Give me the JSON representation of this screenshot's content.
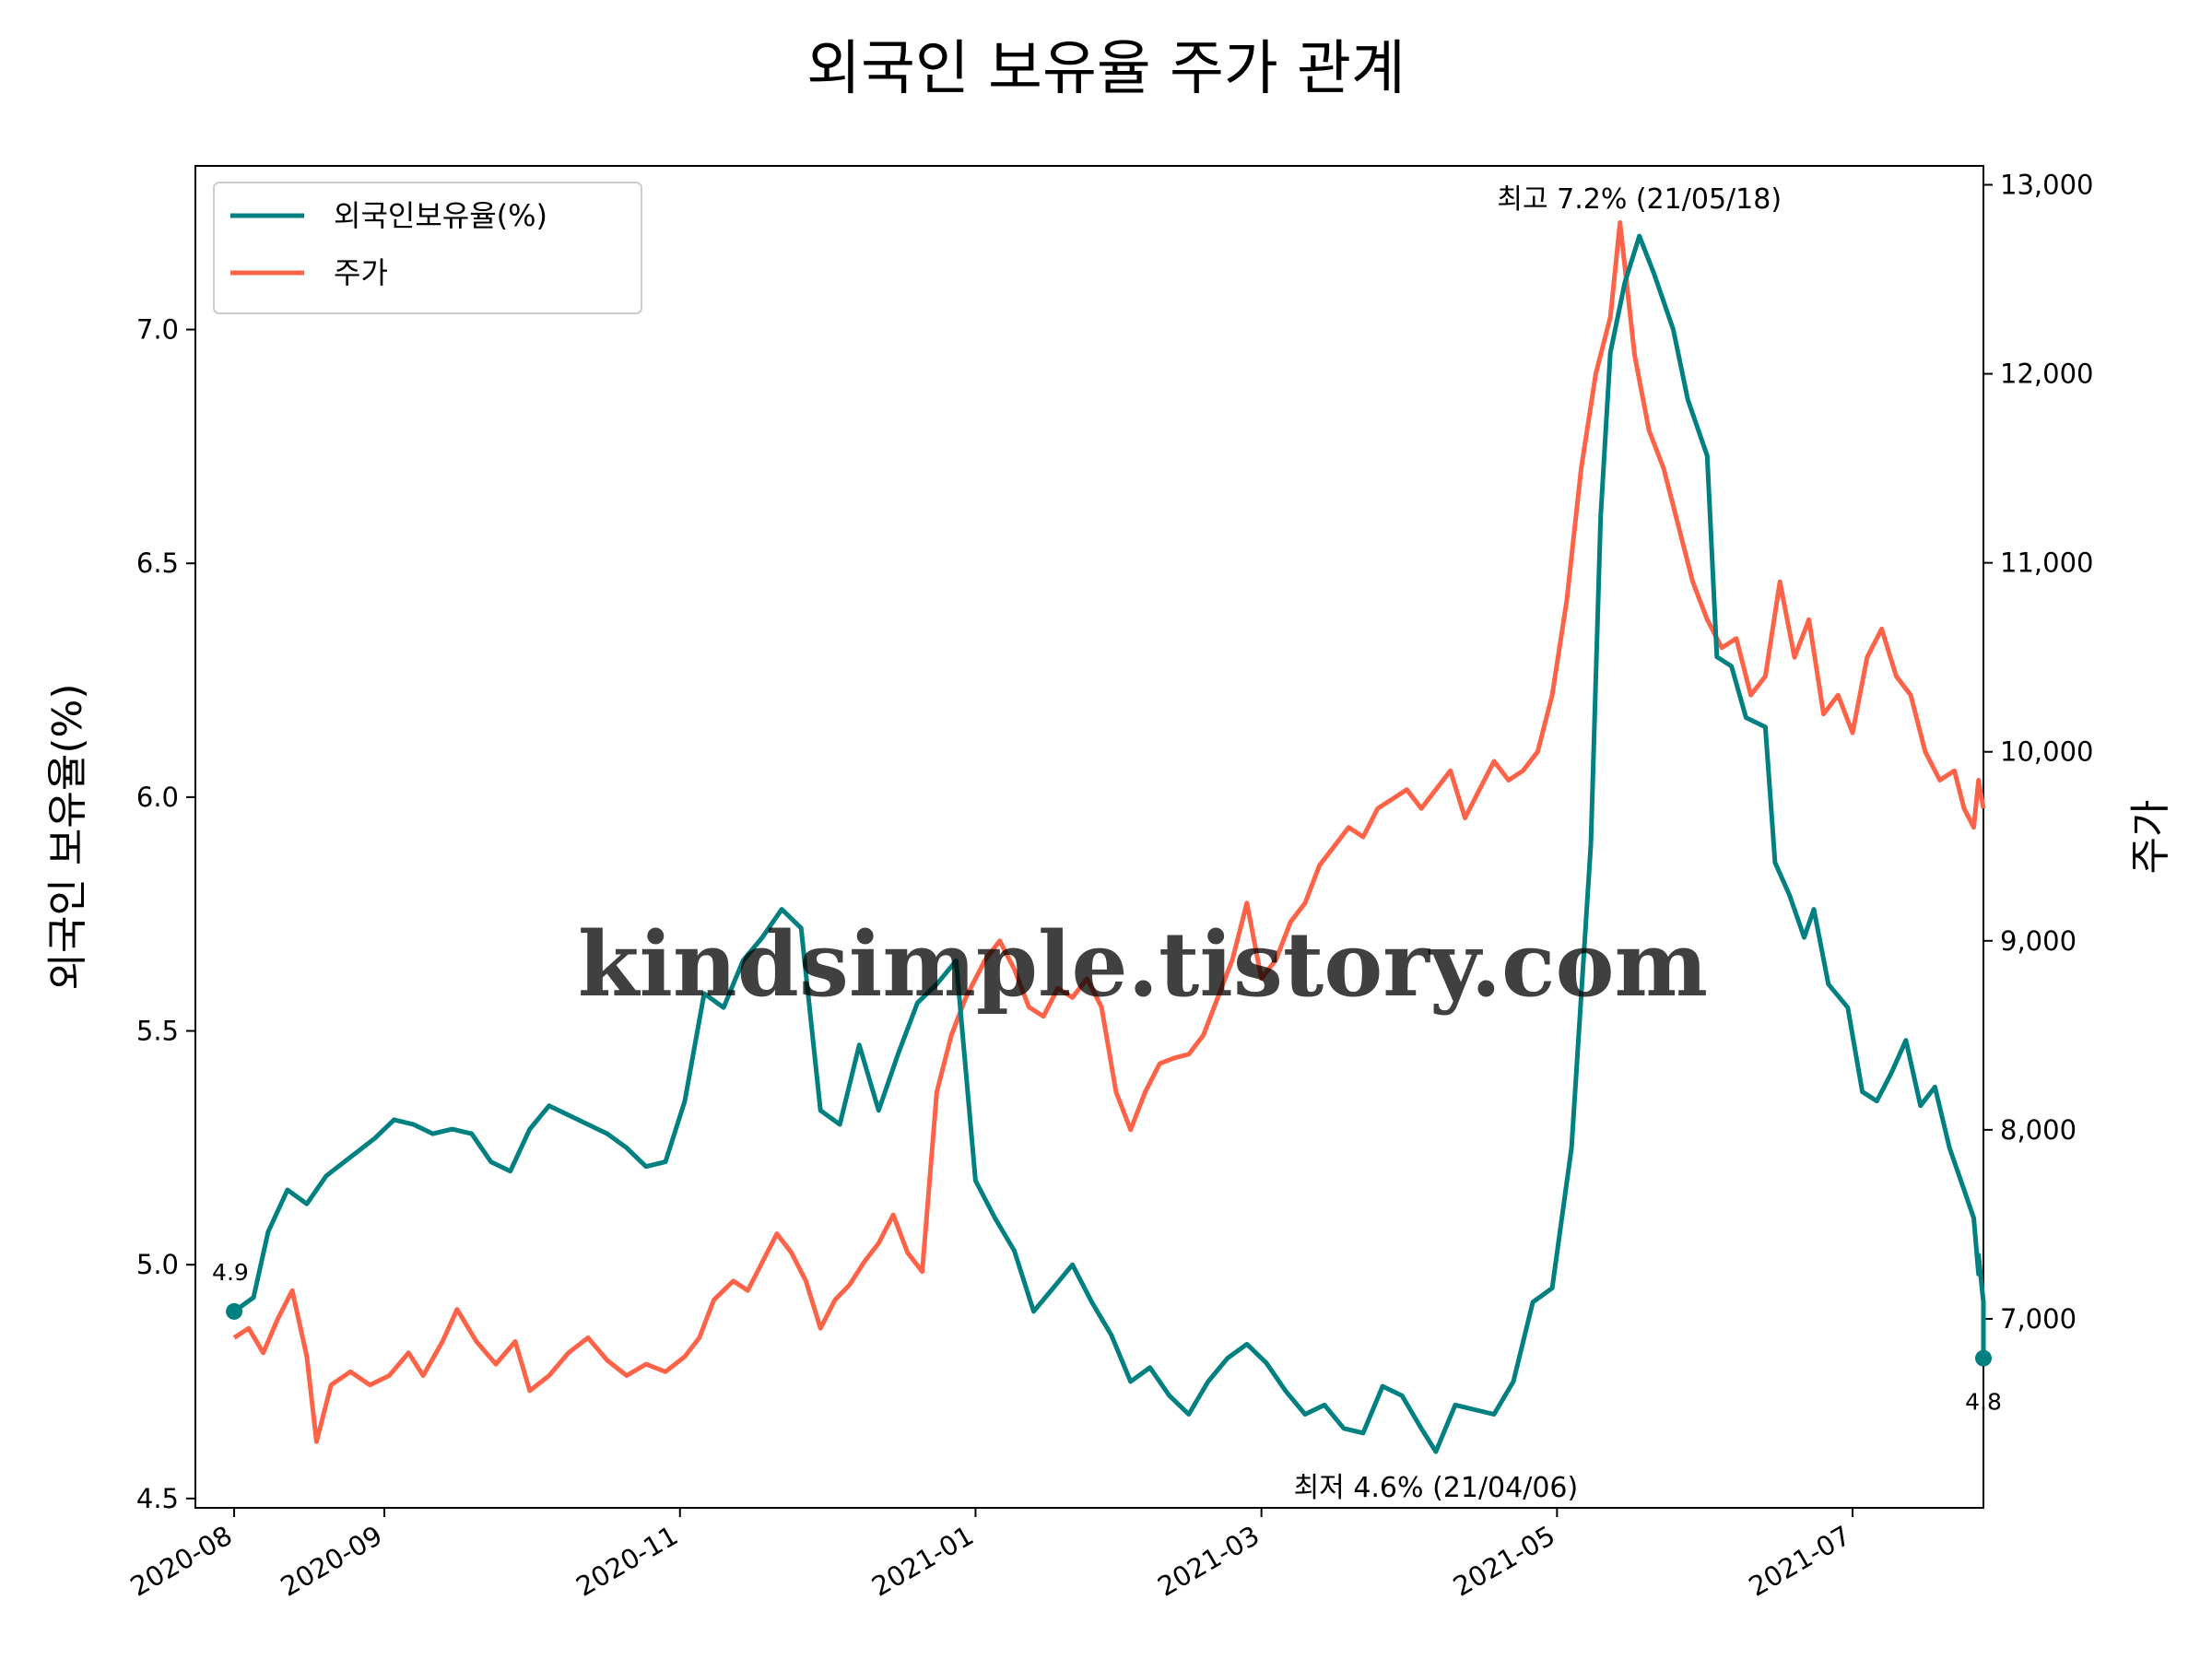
{
  "chart_data": {
    "type": "line",
    "title": "외국인 보유율 주가 관계",
    "ylabel_left": "외국인 보유율(%)",
    "ylabel_right": "주가",
    "ylim_left": [
      4.48,
      7.35
    ],
    "ylim_right": [
      6000,
      13100
    ],
    "x_range": [
      "2020-07-24",
      "2021-07-28"
    ],
    "x_ticks": [
      "2020-08",
      "2020-09",
      "2020-11",
      "2021-01",
      "2021-03",
      "2021-05",
      "2021-07"
    ],
    "x_tick_dates": [
      "2020-08-01",
      "2020-09-01",
      "2020-11-01",
      "2021-01-01",
      "2021-03-01",
      "2021-05-01",
      "2021-07-01"
    ],
    "y_ticks_left": [
      "4.5",
      "5.0",
      "5.5",
      "6.0",
      "6.5",
      "7.0"
    ],
    "y_ticks_right": [
      "7,000",
      "8,000",
      "9,000",
      "10,000",
      "11,000",
      "12,000",
      "13,000"
    ],
    "legend": {
      "position": "upper-left",
      "entries": [
        "외국인보유율(%)",
        "주가"
      ]
    },
    "colors": {
      "holding": "#008080",
      "price": "#FF6347",
      "max_label": "#FF0000",
      "min_label": "#0000FF"
    },
    "series": [
      {
        "name": "외국인보유율(%)",
        "axis": "left",
        "points": [
          [
            "2020-08-01",
            4.9
          ],
          [
            "2020-08-05",
            4.93
          ],
          [
            "2020-08-08",
            5.07
          ],
          [
            "2020-08-12",
            5.16
          ],
          [
            "2020-08-16",
            5.13
          ],
          [
            "2020-08-20",
            5.19
          ],
          [
            "2020-08-25",
            5.23
          ],
          [
            "2020-08-30",
            5.27
          ],
          [
            "2020-09-03",
            5.31
          ],
          [
            "2020-09-07",
            5.3
          ],
          [
            "2020-09-11",
            5.28
          ],
          [
            "2020-09-15",
            5.29
          ],
          [
            "2020-09-19",
            5.28
          ],
          [
            "2020-09-23",
            5.22
          ],
          [
            "2020-09-27",
            5.2
          ],
          [
            "2020-10-01",
            5.29
          ],
          [
            "2020-10-05",
            5.34
          ],
          [
            "2020-10-09",
            5.32
          ],
          [
            "2020-10-13",
            5.3
          ],
          [
            "2020-10-17",
            5.28
          ],
          [
            "2020-10-21",
            5.25
          ],
          [
            "2020-10-25",
            5.21
          ],
          [
            "2020-10-29",
            5.22
          ],
          [
            "2020-11-02",
            5.35
          ],
          [
            "2020-11-06",
            5.58
          ],
          [
            "2020-11-10",
            5.55
          ],
          [
            "2020-11-14",
            5.65
          ],
          [
            "2020-11-18",
            5.7
          ],
          [
            "2020-11-22",
            5.76
          ],
          [
            "2020-11-26",
            5.72
          ],
          [
            "2020-11-30",
            5.33
          ],
          [
            "2020-12-04",
            5.3
          ],
          [
            "2020-12-08",
            5.47
          ],
          [
            "2020-12-12",
            5.33
          ],
          [
            "2020-12-16",
            5.45
          ],
          [
            "2020-12-20",
            5.56
          ],
          [
            "2020-12-24",
            5.6
          ],
          [
            "2020-12-28",
            5.65
          ],
          [
            "2021-01-01",
            5.18
          ],
          [
            "2021-01-05",
            5.1
          ],
          [
            "2021-01-09",
            5.03
          ],
          [
            "2021-01-13",
            4.9
          ],
          [
            "2021-01-17",
            4.95
          ],
          [
            "2021-01-21",
            5.0
          ],
          [
            "2021-01-25",
            4.92
          ],
          [
            "2021-01-29",
            4.85
          ],
          [
            "2021-02-02",
            4.75
          ],
          [
            "2021-02-06",
            4.78
          ],
          [
            "2021-02-10",
            4.72
          ],
          [
            "2021-02-14",
            4.68
          ],
          [
            "2021-02-18",
            4.75
          ],
          [
            "2021-02-22",
            4.8
          ],
          [
            "2021-02-26",
            4.83
          ],
          [
            "2021-03-02",
            4.79
          ],
          [
            "2021-03-06",
            4.73
          ],
          [
            "2021-03-10",
            4.68
          ],
          [
            "2021-03-14",
            4.7
          ],
          [
            "2021-03-18",
            4.65
          ],
          [
            "2021-03-22",
            4.64
          ],
          [
            "2021-03-26",
            4.74
          ],
          [
            "2021-03-30",
            4.72
          ],
          [
            "2021-04-03",
            4.65
          ],
          [
            "2021-04-06",
            4.6
          ],
          [
            "2021-04-10",
            4.7
          ],
          [
            "2021-04-14",
            4.69
          ],
          [
            "2021-04-18",
            4.68
          ],
          [
            "2021-04-22",
            4.75
          ],
          [
            "2021-04-26",
            4.92
          ],
          [
            "2021-04-30",
            4.95
          ],
          [
            "2021-05-04",
            5.25
          ],
          [
            "2021-05-08",
            5.9
          ],
          [
            "2021-05-10",
            6.6
          ],
          [
            "2021-05-12",
            6.95
          ],
          [
            "2021-05-15",
            7.1
          ],
          [
            "2021-05-18",
            7.2
          ],
          [
            "2021-05-21",
            7.12
          ],
          [
            "2021-05-25",
            7.0
          ],
          [
            "2021-05-28",
            6.85
          ],
          [
            "2021-06-01",
            6.73
          ],
          [
            "2021-06-03",
            6.3
          ],
          [
            "2021-06-06",
            6.28
          ],
          [
            "2021-06-09",
            6.17
          ],
          [
            "2021-06-13",
            6.15
          ],
          [
            "2021-06-15",
            5.86
          ],
          [
            "2021-06-18",
            5.79
          ],
          [
            "2021-06-21",
            5.7
          ],
          [
            "2021-06-23",
            5.76
          ],
          [
            "2021-06-26",
            5.6
          ],
          [
            "2021-06-30",
            5.55
          ],
          [
            "2021-07-03",
            5.37
          ],
          [
            "2021-07-06",
            5.35
          ],
          [
            "2021-07-09",
            5.41
          ],
          [
            "2021-07-12",
            5.48
          ],
          [
            "2021-07-15",
            5.34
          ],
          [
            "2021-07-18",
            5.38
          ],
          [
            "2021-07-21",
            5.25
          ],
          [
            "2021-07-24",
            5.16
          ],
          [
            "2021-07-26",
            5.1
          ],
          [
            "2021-07-27",
            4.98
          ],
          [
            "2021-07-27",
            5.02
          ],
          [
            "2021-07-28",
            4.92
          ],
          [
            "2021-07-28",
            4.8
          ]
        ]
      },
      {
        "name": "주가",
        "axis": "right",
        "points": [
          [
            "2020-08-01",
            6900
          ],
          [
            "2020-08-04",
            6950
          ],
          [
            "2020-08-07",
            6820
          ],
          [
            "2020-08-10",
            7000
          ],
          [
            "2020-08-13",
            7150
          ],
          [
            "2020-08-16",
            6800
          ],
          [
            "2020-08-18",
            6350
          ],
          [
            "2020-08-21",
            6650
          ],
          [
            "2020-08-25",
            6720
          ],
          [
            "2020-08-29",
            6650
          ],
          [
            "2020-09-02",
            6700
          ],
          [
            "2020-09-06",
            6820
          ],
          [
            "2020-09-09",
            6700
          ],
          [
            "2020-09-13",
            6880
          ],
          [
            "2020-09-16",
            7050
          ],
          [
            "2020-09-20",
            6880
          ],
          [
            "2020-09-24",
            6760
          ],
          [
            "2020-09-28",
            6880
          ],
          [
            "2020-10-01",
            6620
          ],
          [
            "2020-10-05",
            6700
          ],
          [
            "2020-10-09",
            6820
          ],
          [
            "2020-10-13",
            6900
          ],
          [
            "2020-10-17",
            6780
          ],
          [
            "2020-10-21",
            6700
          ],
          [
            "2020-10-25",
            6760
          ],
          [
            "2020-10-29",
            6720
          ],
          [
            "2020-11-02",
            6800
          ],
          [
            "2020-11-05",
            6900
          ],
          [
            "2020-11-08",
            7100
          ],
          [
            "2020-11-12",
            7200
          ],
          [
            "2020-11-15",
            7150
          ],
          [
            "2020-11-18",
            7300
          ],
          [
            "2020-11-21",
            7450
          ],
          [
            "2020-11-24",
            7350
          ],
          [
            "2020-11-27",
            7200
          ],
          [
            "2020-11-30",
            6950
          ],
          [
            "2020-12-03",
            7100
          ],
          [
            "2020-12-06",
            7180
          ],
          [
            "2020-12-09",
            7300
          ],
          [
            "2020-12-12",
            7400
          ],
          [
            "2020-12-15",
            7550
          ],
          [
            "2020-12-18",
            7350
          ],
          [
            "2020-12-21",
            7250
          ],
          [
            "2020-12-24",
            8200
          ],
          [
            "2020-12-27",
            8500
          ],
          [
            "2020-12-30",
            8700
          ],
          [
            "2021-01-03",
            8900
          ],
          [
            "2021-01-06",
            9000
          ],
          [
            "2021-01-09",
            8850
          ],
          [
            "2021-01-12",
            8650
          ],
          [
            "2021-01-15",
            8600
          ],
          [
            "2021-01-18",
            8750
          ],
          [
            "2021-01-21",
            8700
          ],
          [
            "2021-01-24",
            8800
          ],
          [
            "2021-01-27",
            8650
          ],
          [
            "2021-01-30",
            8200
          ],
          [
            "2021-02-02",
            8000
          ],
          [
            "2021-02-05",
            8200
          ],
          [
            "2021-02-08",
            8350
          ],
          [
            "2021-02-11",
            8380
          ],
          [
            "2021-02-14",
            8400
          ],
          [
            "2021-02-17",
            8500
          ],
          [
            "2021-02-20",
            8700
          ],
          [
            "2021-02-23",
            8900
          ],
          [
            "2021-02-26",
            9200
          ],
          [
            "2021-03-01",
            8800
          ],
          [
            "2021-03-04",
            8900
          ],
          [
            "2021-03-07",
            9100
          ],
          [
            "2021-03-10",
            9200
          ],
          [
            "2021-03-13",
            9400
          ],
          [
            "2021-03-16",
            9500
          ],
          [
            "2021-03-19",
            9600
          ],
          [
            "2021-03-22",
            9550
          ],
          [
            "2021-03-25",
            9700
          ],
          [
            "2021-03-28",
            9750
          ],
          [
            "2021-03-31",
            9800
          ],
          [
            "2021-04-03",
            9700
          ],
          [
            "2021-04-06",
            9800
          ],
          [
            "2021-04-09",
            9900
          ],
          [
            "2021-04-12",
            9650
          ],
          [
            "2021-04-15",
            9800
          ],
          [
            "2021-04-18",
            9950
          ],
          [
            "2021-04-21",
            9850
          ],
          [
            "2021-04-24",
            9900
          ],
          [
            "2021-04-27",
            10000
          ],
          [
            "2021-04-30",
            10300
          ],
          [
            "2021-05-03",
            10800
          ],
          [
            "2021-05-06",
            11500
          ],
          [
            "2021-05-09",
            12000
          ],
          [
            "2021-05-12",
            12300
          ],
          [
            "2021-05-14",
            12800
          ],
          [
            "2021-05-17",
            12100
          ],
          [
            "2021-05-20",
            11700
          ],
          [
            "2021-05-23",
            11500
          ],
          [
            "2021-05-26",
            11200
          ],
          [
            "2021-05-29",
            10900
          ],
          [
            "2021-06-01",
            10700
          ],
          [
            "2021-06-04",
            10550
          ],
          [
            "2021-06-07",
            10600
          ],
          [
            "2021-06-10",
            10300
          ],
          [
            "2021-06-13",
            10400
          ],
          [
            "2021-06-16",
            10900
          ],
          [
            "2021-06-19",
            10500
          ],
          [
            "2021-06-22",
            10700
          ],
          [
            "2021-06-25",
            10200
          ],
          [
            "2021-06-28",
            10300
          ],
          [
            "2021-07-01",
            10100
          ],
          [
            "2021-07-04",
            10500
          ],
          [
            "2021-07-07",
            10650
          ],
          [
            "2021-07-10",
            10400
          ],
          [
            "2021-07-13",
            10300
          ],
          [
            "2021-07-16",
            10000
          ],
          [
            "2021-07-19",
            9850
          ],
          [
            "2021-07-22",
            9900
          ],
          [
            "2021-07-24",
            9700
          ],
          [
            "2021-07-26",
            9600
          ],
          [
            "2021-07-27",
            9850
          ],
          [
            "2021-07-28",
            9700
          ]
        ]
      }
    ],
    "annotations": [
      {
        "text": "최고 7.2% (21/05/18)",
        "date": "2021-05-18",
        "value": 7.2,
        "axis": "left",
        "color": "#FF0000"
      },
      {
        "text": "최저 4.6% (21/04/06)",
        "date": "2021-04-06",
        "value": 4.6,
        "axis": "left",
        "color": "#0000FF"
      },
      {
        "text": "4.9",
        "date": "2020-08-01",
        "value": 4.9,
        "axis": "left",
        "color": "#008080"
      },
      {
        "text": "4.8",
        "date": "2021-07-28",
        "value": 4.8,
        "axis": "left",
        "color": "#008080"
      }
    ],
    "watermark": "kindsimple.tistory.com"
  }
}
